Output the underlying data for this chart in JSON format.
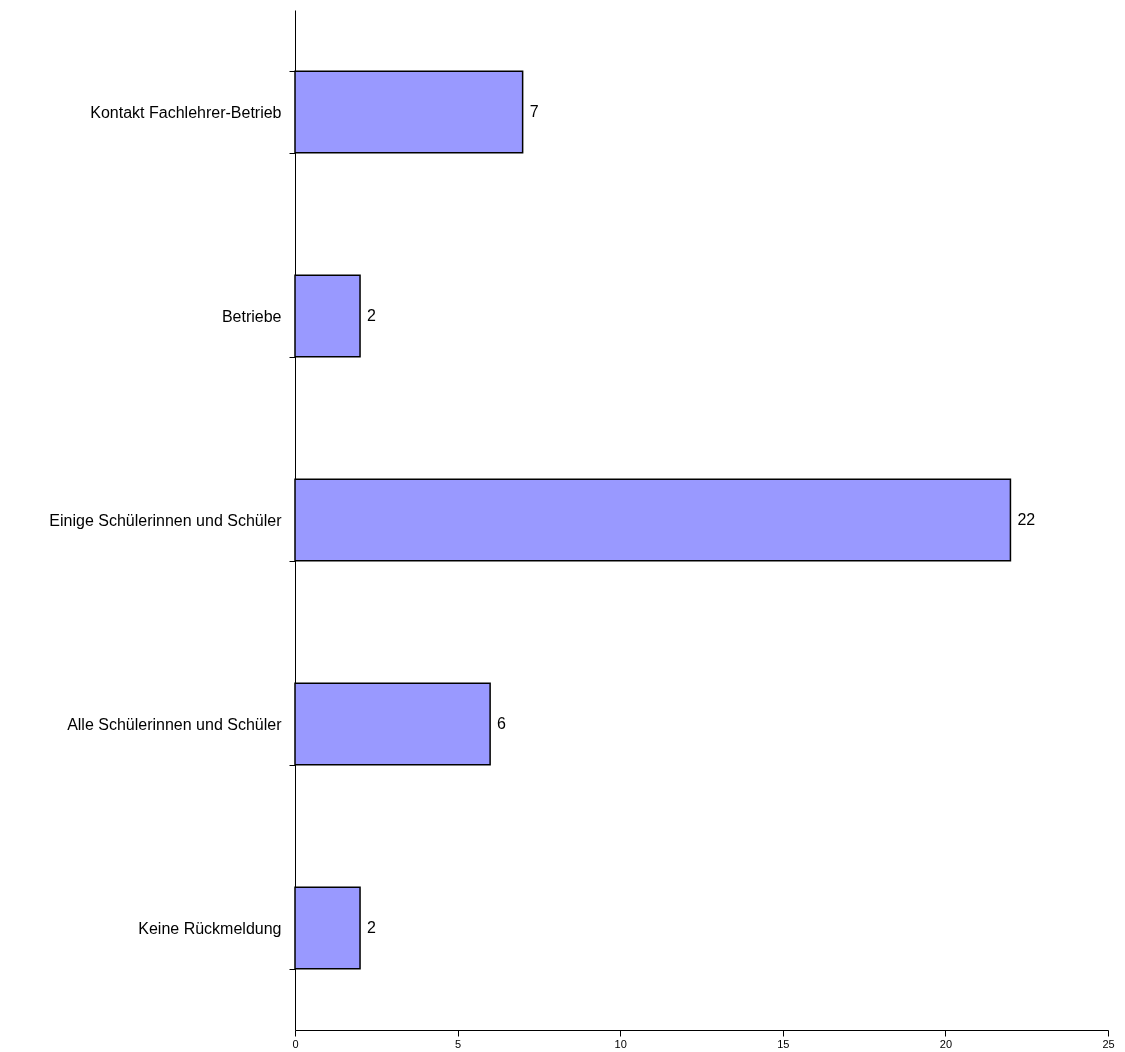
{
  "chart_data": {
    "type": "bar",
    "orientation": "horizontal",
    "categories": [
      "Kontakt Fachlehrer-Betrieb",
      "Betriebe",
      "Einige Schülerinnen und Schüler",
      "Alle Schülerinnen und Schüler",
      "Keine Rückmeldung"
    ],
    "values": [
      7,
      2,
      22,
      6,
      2
    ],
    "color": "#9999ff",
    "xlim": [
      0,
      25
    ],
    "xticks": [
      0,
      5,
      10,
      15,
      20,
      25
    ],
    "data_labels": true,
    "grid": false
  }
}
